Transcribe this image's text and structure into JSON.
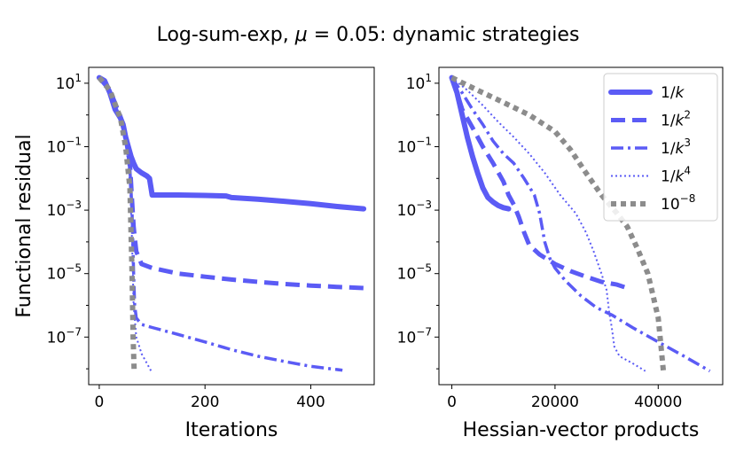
{
  "figure": {
    "title_prefix": "Log-sum-exp, ",
    "title_mu": "μ",
    "title_suffix": " = 0.05: dynamic strategies"
  },
  "chart_data": [
    {
      "type": "line",
      "panel": "left",
      "xlabel": "Iterations",
      "ylabel": "Functional residual",
      "yscale": "log",
      "xlim": [
        -20,
        520
      ],
      "ylim_log10": [
        -8.5,
        1.5
      ],
      "xticks": [
        0,
        200,
        400
      ],
      "xtick_labels": [
        "0",
        "200",
        "400"
      ],
      "ytick_exponents": [
        1,
        -1,
        -3,
        -5,
        -7
      ],
      "series": [
        {
          "name": "1/k",
          "points": [
            [
              0,
              15
            ],
            [
              10,
              12
            ],
            [
              20,
              5
            ],
            [
              30,
              1.5
            ],
            [
              40,
              0.8
            ],
            [
              45,
              0.5
            ],
            [
              50,
              0.2
            ],
            [
              55,
              0.1
            ],
            [
              60,
              0.05
            ],
            [
              65,
              0.03
            ],
            [
              70,
              0.02
            ],
            [
              80,
              0.015
            ],
            [
              90,
              0.012
            ],
            [
              95,
              0.01
            ],
            [
              100,
              0.003
            ],
            [
              150,
              0.003
            ],
            [
              200,
              0.0029
            ],
            [
              240,
              0.0028
            ],
            [
              250,
              0.0025
            ],
            [
              300,
              0.0022
            ],
            [
              350,
              0.0019
            ],
            [
              400,
              0.0016
            ],
            [
              450,
              0.0013
            ],
            [
              500,
              0.0011
            ]
          ]
        },
        {
          "name": "1/k^2",
          "points": [
            [
              0,
              15
            ],
            [
              20,
              6
            ],
            [
              40,
              0.9
            ],
            [
              50,
              0.2
            ],
            [
              58,
              0.03
            ],
            [
              62,
              0.002
            ],
            [
              65,
              0.0003
            ],
            [
              68,
              0.0001
            ],
            [
              70,
              5e-05
            ],
            [
              80,
              2e-05
            ],
            [
              100,
              1.5e-05
            ],
            [
              150,
              1e-05
            ],
            [
              200,
              8e-06
            ],
            [
              250,
              6.5e-06
            ],
            [
              300,
              5.5e-06
            ],
            [
              350,
              4.7e-06
            ],
            [
              400,
              4.2e-06
            ],
            [
              450,
              3.8e-06
            ],
            [
              500,
              3.5e-06
            ]
          ]
        },
        {
          "name": "1/k^3",
          "points": [
            [
              0,
              15
            ],
            [
              20,
              6
            ],
            [
              40,
              0.8
            ],
            [
              50,
              0.2
            ],
            [
              58,
              0.02
            ],
            [
              62,
              0.001
            ],
            [
              65,
              1e-05
            ],
            [
              67,
              1e-06
            ],
            [
              70,
              4e-07
            ],
            [
              80,
              2.5e-07
            ],
            [
              100,
              2e-07
            ],
            [
              150,
              1.2e-07
            ],
            [
              200,
              7e-08
            ],
            [
              250,
              4e-08
            ],
            [
              300,
              2.5e-08
            ],
            [
              350,
              1.7e-08
            ],
            [
              400,
              1.2e-08
            ],
            [
              460,
              9e-09
            ]
          ]
        },
        {
          "name": "1/k^4",
          "points": [
            [
              0,
              15
            ],
            [
              20,
              6
            ],
            [
              40,
              0.8
            ],
            [
              50,
              0.15
            ],
            [
              58,
              0.01
            ],
            [
              62,
              0.0001
            ],
            [
              65,
              1e-06
            ],
            [
              70,
              1e-07
            ],
            [
              80,
              3e-08
            ],
            [
              90,
              1.5e-08
            ],
            [
              98,
              8.5e-09
            ]
          ]
        },
        {
          "name": "10^{-8}",
          "points": [
            [
              0,
              15
            ],
            [
              20,
              6
            ],
            [
              40,
              0.8
            ],
            [
              50,
              0.1
            ],
            [
              58,
              0.005
            ],
            [
              62,
              1e-05
            ],
            [
              64,
              1e-07
            ],
            [
              66,
              8.5e-09
            ]
          ]
        }
      ]
    },
    {
      "type": "line",
      "panel": "right",
      "xlabel": "Hessian-vector products",
      "ylabel": "",
      "yscale": "log",
      "xlim": [
        -2500,
        52500
      ],
      "ylim_log10": [
        -8.5,
        1.5
      ],
      "xticks": [
        0,
        20000,
        40000
      ],
      "xtick_labels": [
        "0",
        "20000",
        "40000"
      ],
      "ytick_exponents": [
        1,
        -1,
        -3,
        -5,
        -7
      ],
      "legend": "top-right",
      "series": [
        {
          "name": "1/k",
          "points": [
            [
              0,
              15
            ],
            [
              1000,
              5
            ],
            [
              2000,
              1
            ],
            [
              3000,
              0.2
            ],
            [
              4000,
              0.05
            ],
            [
              5000,
              0.015
            ],
            [
              6000,
              0.005
            ],
            [
              7000,
              0.0025
            ],
            [
              8000,
              0.0018
            ],
            [
              9000,
              0.0014
            ],
            [
              10000,
              0.0012
            ],
            [
              11000,
              0.0011
            ]
          ]
        },
        {
          "name": "1/k^2",
          "points": [
            [
              0,
              15
            ],
            [
              1000,
              5
            ],
            [
              2000,
              1.5
            ],
            [
              4000,
              0.4
            ],
            [
              6000,
              0.1
            ],
            [
              8000,
              0.03
            ],
            [
              10000,
              0.008
            ],
            [
              11000,
              0.003
            ],
            [
              12000,
              0.0015
            ],
            [
              13000,
              0.0006
            ],
            [
              14000,
              0.0002
            ],
            [
              15000,
              8e-05
            ],
            [
              17000,
              4e-05
            ],
            [
              20000,
              2e-05
            ],
            [
              23000,
              1.2e-05
            ],
            [
              26000,
              8e-06
            ],
            [
              29000,
              5.5e-06
            ],
            [
              32000,
              4.5e-06
            ],
            [
              34000,
              3.5e-06
            ]
          ]
        },
        {
          "name": "1/k^3",
          "points": [
            [
              0,
              15
            ],
            [
              2000,
              5
            ],
            [
              4000,
              1.5
            ],
            [
              6000,
              0.5
            ],
            [
              8000,
              0.15
            ],
            [
              10000,
              0.06
            ],
            [
              12000,
              0.03
            ],
            [
              14000,
              0.01
            ],
            [
              16000,
              0.003
            ],
            [
              17000,
              0.0008
            ],
            [
              18000,
              0.0001
            ],
            [
              19000,
              3e-05
            ],
            [
              20000,
              1.5e-05
            ],
            [
              22000,
              6e-06
            ],
            [
              25000,
              2e-06
            ],
            [
              28000,
              8.5e-07
            ],
            [
              31000,
              5e-07
            ],
            [
              35000,
              2e-07
            ],
            [
              40000,
              7e-08
            ],
            [
              45000,
              2.5e-08
            ],
            [
              50000,
              8.5e-09
            ]
          ]
        },
        {
          "name": "1/k^4",
          "points": [
            [
              0,
              15
            ],
            [
              3000,
              6
            ],
            [
              6000,
              2
            ],
            [
              9000,
              0.6
            ],
            [
              12000,
              0.2
            ],
            [
              15000,
              0.06
            ],
            [
              18000,
              0.015
            ],
            [
              21000,
              0.003
            ],
            [
              24000,
              0.0008
            ],
            [
              26000,
              0.0002
            ],
            [
              27500,
              5e-05
            ],
            [
              29000,
              1e-05
            ],
            [
              30000,
              3e-06
            ],
            [
              30500,
              6e-07
            ],
            [
              31000,
              2e-07
            ],
            [
              31500,
              5e-08
            ],
            [
              32500,
              2.5e-08
            ],
            [
              35000,
              1.5e-08
            ],
            [
              37500,
              8.5e-09
            ]
          ]
        },
        {
          "name": "10^{-8}",
          "points": [
            [
              0,
              15
            ],
            [
              5000,
              6
            ],
            [
              10000,
              2.5
            ],
            [
              15000,
              1
            ],
            [
              20000,
              0.3
            ],
            [
              23000,
              0.08
            ],
            [
              26000,
              0.015
            ],
            [
              29000,
              0.003
            ],
            [
              32000,
              0.0008
            ],
            [
              34000,
              0.0003
            ],
            [
              36000,
              6e-05
            ],
            [
              38000,
              1e-05
            ],
            [
              39000,
              2e-06
            ],
            [
              40000,
              4e-07
            ],
            [
              40500,
              6e-08
            ],
            [
              41000,
              8.5e-09
            ]
          ]
        }
      ]
    }
  ],
  "legend_items": [
    {
      "base": "1/",
      "var": "k",
      "sup": ""
    },
    {
      "base": "1/",
      "var": "k",
      "sup": "2"
    },
    {
      "base": "1/",
      "var": "k",
      "sup": "3"
    },
    {
      "base": "1/",
      "var": "k",
      "sup": "4"
    },
    {
      "base": "10",
      "var": "",
      "sup": "−8"
    }
  ],
  "styles": {
    "colors": {
      "1/k": "#5b5bf5",
      "1/k^2": "#5b5bf5",
      "1/k^3": "#5b5bf5",
      "1/k^4": "#5b5bf5",
      "10^{-8}": "#8c8c8c"
    },
    "tick_base": "10",
    "tick_minus": "−"
  }
}
